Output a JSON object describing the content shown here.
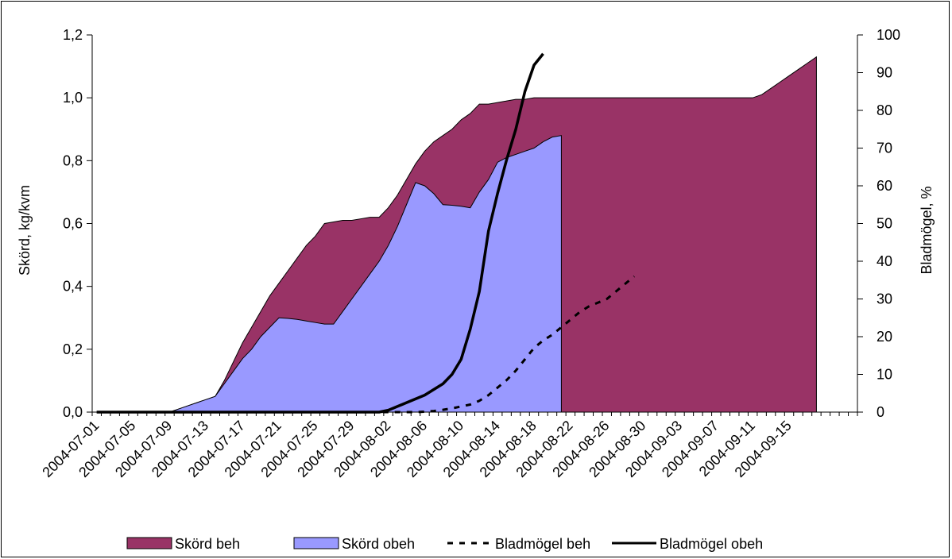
{
  "chart_data": {
    "type": "area",
    "dates": [
      "2004-07-01",
      "2004-07-02",
      "2004-07-03",
      "2004-07-04",
      "2004-07-05",
      "2004-07-06",
      "2004-07-07",
      "2004-07-08",
      "2004-07-09",
      "2004-07-10",
      "2004-07-11",
      "2004-07-12",
      "2004-07-13",
      "2004-07-14",
      "2004-07-15",
      "2004-07-16",
      "2004-07-17",
      "2004-07-18",
      "2004-07-19",
      "2004-07-20",
      "2004-07-21",
      "2004-07-22",
      "2004-07-23",
      "2004-07-24",
      "2004-07-25",
      "2004-07-26",
      "2004-07-27",
      "2004-07-28",
      "2004-07-29",
      "2004-07-30",
      "2004-07-31",
      "2004-08-01",
      "2004-08-02",
      "2004-08-03",
      "2004-08-04",
      "2004-08-05",
      "2004-08-06",
      "2004-08-07",
      "2004-08-08",
      "2004-08-09",
      "2004-08-10",
      "2004-08-11",
      "2004-08-12",
      "2004-08-13",
      "2004-08-14",
      "2004-08-15",
      "2004-08-16",
      "2004-08-17",
      "2004-08-18",
      "2004-08-19",
      "2004-08-20",
      "2004-08-21",
      "2004-08-22",
      "2004-08-23",
      "2004-08-24",
      "2004-08-25",
      "2004-08-26",
      "2004-08-27",
      "2004-08-28",
      "2004-08-29",
      "2004-08-30",
      "2004-08-31",
      "2004-09-01",
      "2004-09-02",
      "2004-09-03",
      "2004-09-04",
      "2004-09-05",
      "2004-09-06",
      "2004-09-07",
      "2004-09-08",
      "2004-09-09",
      "2004-09-10",
      "2004-09-11",
      "2004-09-12",
      "2004-09-13",
      "2004-09-14",
      "2004-09-15",
      "2004-09-16",
      "2004-09-17",
      "2004-09-18",
      "2004-09-19",
      "2004-09-20",
      "2004-09-21",
      "2004-09-22"
    ],
    "x_tick_labels": [
      "2004-07-01",
      "2004-07-05",
      "2004-07-09",
      "2004-07-13",
      "2004-07-17",
      "2004-07-21",
      "2004-07-25",
      "2004-07-29",
      "2004-08-02",
      "2004-08-06",
      "2004-08-10",
      "2004-08-14",
      "2004-08-18",
      "2004-08-22",
      "2004-08-26",
      "2004-08-30",
      "2004-09-03",
      "2004-09-07",
      "2004-09-11",
      "2004-09-15"
    ],
    "ylabel_left": "Skörd, kg/kvm",
    "ylabel_right": "Bladmögel, %",
    "ylim_left": [
      0,
      1.2
    ],
    "ylim_right": [
      0,
      100
    ],
    "yticks_left": [
      "0,0",
      "0,2",
      "0,4",
      "0,6",
      "0,8",
      "1,0",
      "1,2"
    ],
    "yticks_right": [
      "0",
      "10",
      "20",
      "30",
      "40",
      "50",
      "60",
      "70",
      "80",
      "90",
      "100"
    ],
    "grid": false,
    "legend_position": "bottom",
    "series": [
      {
        "name": "Skörd beh",
        "kind": "area",
        "axis": "left",
        "color": "#993366",
        "values": [
          0,
          0,
          0,
          0,
          0,
          0,
          0,
          0,
          0,
          0.01,
          0.02,
          0.03,
          0.04,
          0.05,
          0.1,
          0.16,
          0.22,
          0.27,
          0.32,
          0.37,
          0.41,
          0.45,
          0.49,
          0.53,
          0.56,
          0.6,
          0.605,
          0.61,
          0.61,
          0.615,
          0.62,
          0.62,
          0.65,
          0.69,
          0.74,
          0.79,
          0.83,
          0.86,
          0.88,
          0.9,
          0.93,
          0.95,
          0.98,
          0.98,
          0.985,
          0.99,
          0.995,
          0.995,
          1.0,
          1.0,
          1.0,
          1.0,
          1.0,
          1.0,
          1.0,
          1.0,
          1.0,
          1.0,
          1.0,
          1.0,
          1.0,
          1.0,
          1.0,
          1.0,
          1.0,
          1.0,
          1.0,
          1.0,
          1.0,
          1.0,
          1.0,
          1.0,
          1.0,
          1.01,
          1.03,
          1.05,
          1.07,
          1.09,
          1.11,
          1.13,
          null,
          null,
          null,
          null
        ]
      },
      {
        "name": "Skörd obeh",
        "kind": "area",
        "axis": "left",
        "color": "#9999FF",
        "values": [
          0,
          0,
          0,
          0,
          0,
          0,
          0,
          0,
          0,
          0.01,
          0.02,
          0.03,
          0.04,
          0.05,
          0.09,
          0.13,
          0.17,
          0.2,
          0.24,
          0.27,
          0.3,
          0.298,
          0.295,
          0.29,
          0.285,
          0.28,
          0.28,
          0.32,
          0.36,
          0.4,
          0.44,
          0.48,
          0.53,
          0.59,
          0.66,
          0.73,
          0.72,
          0.695,
          0.66,
          0.658,
          0.655,
          0.65,
          0.7,
          0.74,
          0.795,
          0.81,
          0.82,
          0.83,
          0.84,
          0.86,
          0.875,
          0.88,
          null,
          null,
          null,
          null,
          null,
          null,
          null,
          null,
          null,
          null,
          null,
          null,
          null,
          null,
          null,
          null,
          null,
          null,
          null,
          null,
          null,
          null,
          null,
          null,
          null,
          null,
          null,
          null,
          null,
          null,
          null,
          null
        ]
      },
      {
        "name": "Bladmögel beh",
        "kind": "line",
        "axis": "right",
        "color": "#000000",
        "dash": true,
        "values": [
          0,
          0,
          0,
          0,
          0,
          0,
          0,
          0,
          0,
          0,
          0,
          0,
          0,
          0,
          0,
          0,
          0,
          0,
          0,
          0,
          0,
          0,
          0,
          0,
          0,
          0,
          0,
          0,
          0,
          0,
          0,
          0,
          0,
          0,
          0,
          0,
          0.1,
          0.3,
          0.6,
          1.0,
          1.5,
          2,
          3,
          4.5,
          6.5,
          8.5,
          11,
          14,
          17,
          19,
          20.5,
          22.5,
          24.5,
          26.5,
          28,
          29,
          30,
          32,
          34,
          36,
          null,
          null,
          null,
          null,
          null,
          null,
          null,
          null,
          null,
          null,
          null,
          null,
          null,
          null,
          null,
          null,
          null,
          null,
          null,
          null,
          null,
          null,
          null,
          null
        ]
      },
      {
        "name": "Bladmögel obeh",
        "kind": "line",
        "axis": "right",
        "color": "#000000",
        "dash": false,
        "values": [
          0,
          0,
          0,
          0,
          0,
          0,
          0,
          0,
          0,
          0,
          0,
          0,
          0,
          0,
          0,
          0,
          0,
          0,
          0,
          0,
          0,
          0,
          0,
          0,
          0,
          0,
          0,
          0,
          0,
          0,
          0,
          0,
          0.5,
          1.5,
          2.5,
          3.5,
          4.5,
          6,
          7.5,
          10,
          14,
          22,
          32,
          48,
          58,
          67,
          75,
          85,
          92,
          95,
          null,
          null,
          null,
          null,
          null,
          null,
          null,
          null,
          null,
          null,
          null,
          null,
          null,
          null,
          null,
          null,
          null,
          null,
          null,
          null,
          null,
          null,
          null,
          null,
          null,
          null,
          null,
          null,
          null,
          null,
          null,
          null,
          null,
          null
        ]
      }
    ]
  }
}
